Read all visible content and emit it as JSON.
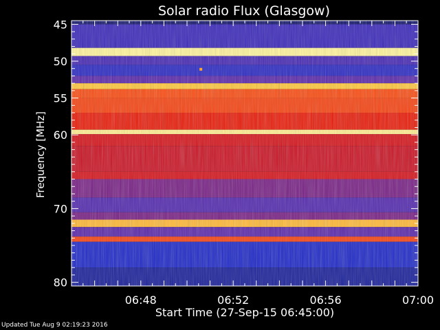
{
  "chart_data": {
    "type": "heatmap",
    "title": "Solar radio Flux (Glasgow)",
    "xlabel": "Start Time (27-Sep-15 06:45:00)",
    "ylabel": "Frequency [MHz]",
    "x_range_minutes": [
      "06:45",
      "07:00"
    ],
    "x_ticks": [
      "06:48",
      "06:52",
      "06:56",
      "07:00"
    ],
    "x_tick_minutes": [
      3,
      7,
      11,
      15
    ],
    "ylim_mhz": [
      44.5,
      80.5
    ],
    "y_ticks": [
      45,
      50,
      55,
      60,
      70,
      80
    ],
    "y_axis_inverted": true,
    "colormap": "blue-red-yellow",
    "bands_mhz": [
      {
        "from": 44.5,
        "to": 45.0,
        "level": 0.05
      },
      {
        "from": 45.0,
        "to": 48.2,
        "level": 0.22
      },
      {
        "from": 48.2,
        "to": 49.3,
        "level": 0.98
      },
      {
        "from": 49.3,
        "to": 50.5,
        "level": 0.25
      },
      {
        "from": 50.5,
        "to": 52.0,
        "level": 0.18
      },
      {
        "from": 52.0,
        "to": 53.0,
        "level": 0.3
      },
      {
        "from": 53.0,
        "to": 53.8,
        "level": 0.9
      },
      {
        "from": 53.8,
        "to": 55.0,
        "level": 0.72
      },
      {
        "from": 55.0,
        "to": 57.0,
        "level": 0.7
      },
      {
        "from": 57.0,
        "to": 59.3,
        "level": 0.62
      },
      {
        "from": 59.3,
        "to": 59.9,
        "level": 0.97
      },
      {
        "from": 59.9,
        "to": 61.5,
        "level": 0.55
      },
      {
        "from": 61.5,
        "to": 65.0,
        "level": 0.52
      },
      {
        "from": 65.0,
        "to": 66.0,
        "level": 0.55
      },
      {
        "from": 66.0,
        "to": 68.5,
        "level": 0.35
      },
      {
        "from": 68.5,
        "to": 70.5,
        "level": 0.28
      },
      {
        "from": 70.5,
        "to": 71.5,
        "level": 0.35
      },
      {
        "from": 71.5,
        "to": 72.5,
        "level": 0.88
      },
      {
        "from": 72.5,
        "to": 73.8,
        "level": 0.3
      },
      {
        "from": 73.8,
        "to": 74.5,
        "level": 0.7
      },
      {
        "from": 74.5,
        "to": 78.0,
        "level": 0.15
      },
      {
        "from": 78.0,
        "to": 80.5,
        "level": 0.1
      }
    ],
    "hot_pixel": {
      "minute": 5.6,
      "mhz": 51.1,
      "level": 0.85
    }
  },
  "footer": {
    "updated_text": "Updated Tue Aug  9 02:19:23 2016"
  },
  "colors": {
    "background": "#000000",
    "axis": "#ffffff",
    "text": "#ffffff"
  }
}
